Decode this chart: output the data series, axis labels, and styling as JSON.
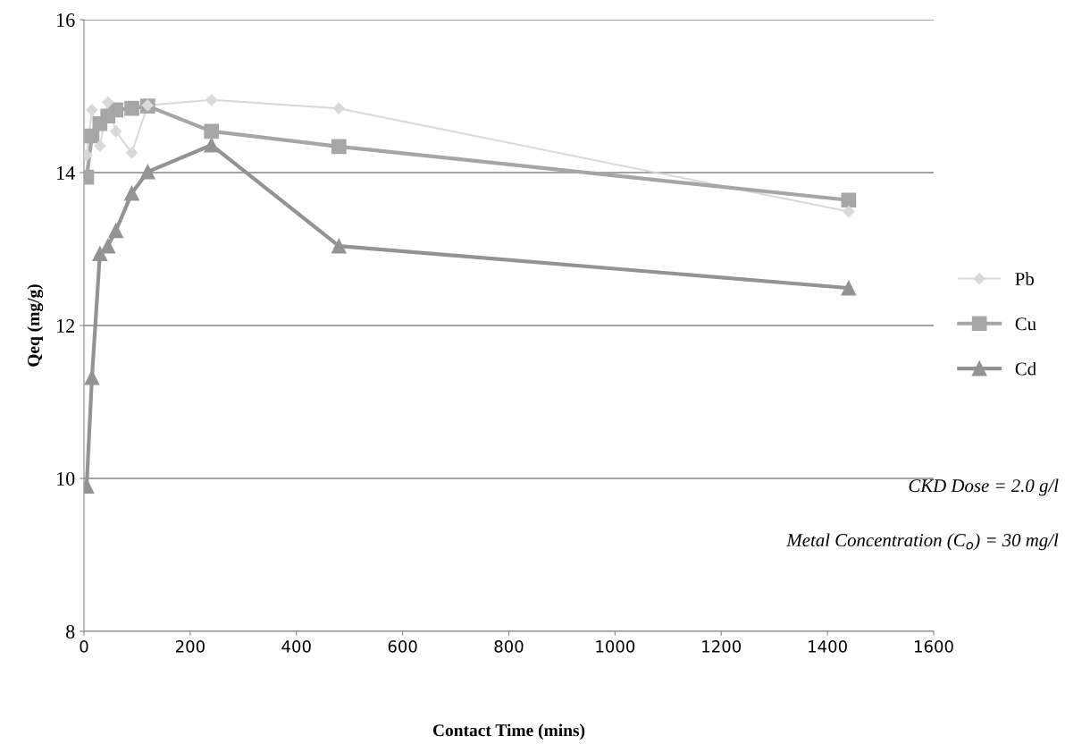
{
  "chart_data": {
    "type": "line",
    "xlabel": "Contact Time (mins)",
    "ylabel": "Qeq (mg/g)",
    "xlim": [
      0,
      1600
    ],
    "xticks": [
      0,
      200,
      400,
      600,
      800,
      1000,
      1200,
      1400,
      1600
    ],
    "ylim": [
      8,
      16
    ],
    "yticks": [
      8,
      10,
      12,
      14,
      16
    ],
    "grid": "y",
    "legend": "right",
    "x": [
      5,
      15,
      30,
      45,
      60,
      90,
      120,
      240,
      480,
      1440
    ],
    "series": [
      {
        "name": "Pb",
        "color": "#d9d9d9",
        "marker": "diamond",
        "values": [
          14.23,
          14.82,
          14.35,
          14.92,
          14.54,
          14.26,
          14.88,
          14.95,
          14.84,
          13.49
        ]
      },
      {
        "name": "Cu",
        "color": "#a6a6a6",
        "marker": "square",
        "values": [
          13.94,
          14.48,
          14.64,
          14.74,
          14.82,
          14.84,
          14.87,
          14.54,
          14.34,
          13.64
        ]
      },
      {
        "name": "Cd",
        "color": "#939393",
        "marker": "triangle",
        "values": [
          9.9,
          11.32,
          12.94,
          13.04,
          13.24,
          13.73,
          14.01,
          14.36,
          13.04,
          12.49
        ]
      }
    ],
    "annotations": [
      "CKD Dose = 2.0 g/l",
      "Metal Concentration (C$_{o}$) = 30 mg/l"
    ]
  }
}
